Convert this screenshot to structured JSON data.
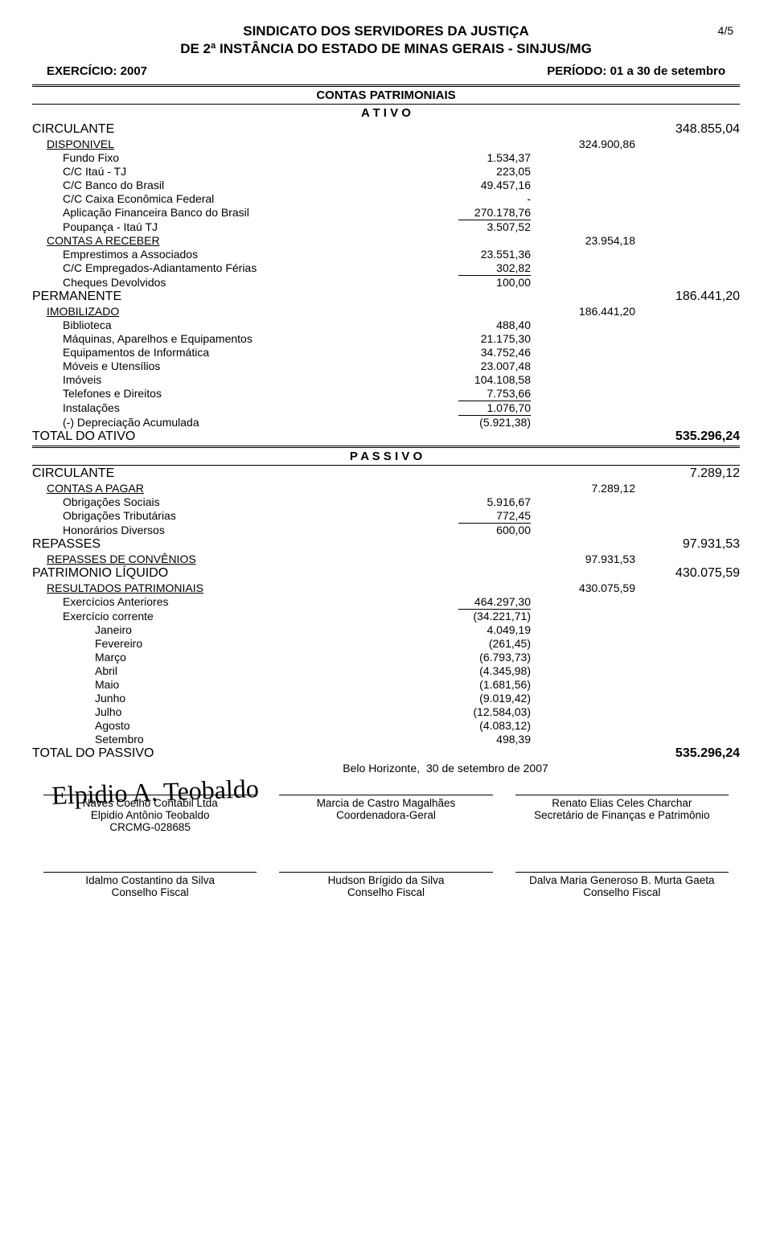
{
  "pageNumber": "4/5",
  "org": {
    "name1": "SINDICATO DOS SERVIDORES DA JUSTIÇA",
    "name2": "DE 2ª INSTÂNCIA DO ESTADO DE MINAS GERAIS - SINJUS/MG"
  },
  "header": {
    "left": "EXERCÍCIO: 2007",
    "right": "PERÍODO: 01 a   30 de setembro"
  },
  "sectionA": "CONTAS PATRIMONIAIS",
  "ativoTitle": "A T I V O",
  "passivoTitle": "P A S S I V O",
  "ativo": {
    "circulante": {
      "label": "CIRCULANTE",
      "total": "348.855,04"
    },
    "disponivel": {
      "label": "DISPONIVEL",
      "total": "324.900,86",
      "items": [
        {
          "label": "Fundo Fixo",
          "val": "1.534,37"
        },
        {
          "label": "C/C Itaú - TJ",
          "val": "223,05"
        },
        {
          "label": "C/C Banco do Brasil",
          "val": "49.457,16"
        },
        {
          "label": "C/C Caixa Econômica Federal",
          "val": "-"
        },
        {
          "label": "Aplicação Financeira Banco do Brasil",
          "val": "270.178,76"
        },
        {
          "label": "Poupança - Itaú TJ",
          "val": "3.507,52",
          "sum": true
        }
      ]
    },
    "contasReceber": {
      "label": "CONTAS A RECEBER",
      "total": "23.954,18",
      "items": [
        {
          "label": "Emprestimos a Associados",
          "val": "23.551,36"
        },
        {
          "label": "C/C Empregados-Adiantamento Férias",
          "val": "302,82"
        },
        {
          "label": "Cheques Devolvidos",
          "val": "100,00",
          "sum": true
        }
      ]
    },
    "permanente": {
      "label": "PERMANENTE",
      "total": "186.441,20"
    },
    "imobilizado": {
      "label": "IMOBILIZADO",
      "total": "186.441,20",
      "items": [
        {
          "label": "Biblioteca",
          "val": "488,40"
        },
        {
          "label": "Máquinas, Aparelhos e Equipamentos",
          "val": "21.175,30"
        },
        {
          "label": "Equipamentos de Informática",
          "val": "34.752,46"
        },
        {
          "label": "Móveis e Utensílios",
          "val": "23.007,48"
        },
        {
          "label": "Imóveis",
          "val": "104.108,58"
        },
        {
          "label": "Telefones e Direitos",
          "val": "7.753,66"
        },
        {
          "label": "Instalações",
          "val": "1.076,70",
          "sum": true
        }
      ]
    },
    "depreciacao": {
      "label": "(-) Depreciação Acumulada",
      "val": "(5.921,38)"
    },
    "totalAtivo": {
      "label": "TOTAL DO ATIVO",
      "total": "535.296,24"
    }
  },
  "passivo": {
    "circulante": {
      "label": "CIRCULANTE",
      "total": "7.289,12"
    },
    "contasPagar": {
      "label": "CONTAS A PAGAR",
      "total": "7.289,12",
      "items": [
        {
          "label": "Obrigações Sociais",
          "val": "5.916,67"
        },
        {
          "label": "Obrigações Tributárias",
          "val": "772,45"
        },
        {
          "label": "Honorários Diversos",
          "val": "600,00",
          "sum": true
        }
      ]
    },
    "repasses": {
      "label": "REPASSES",
      "total": "97.931,53"
    },
    "repassesConv": {
      "label": "REPASSES DE CONVÊNIOS",
      "total": "97.931,53"
    },
    "patrimonio": {
      "label": "PATRIMONIO LÍQUIDO",
      "total": "430.075,59"
    },
    "resultados": {
      "label": "RESULTADOS PATRIMONIAIS",
      "total": "430.075,59"
    },
    "exAnteriores": {
      "label": "Exercícios Anteriores",
      "val": "464.297,30"
    },
    "exCorrente": {
      "label": "Exercício corrente",
      "val": "(34.221,71)"
    },
    "meses": [
      {
        "label": "Janeiro",
        "val": "4.049,19"
      },
      {
        "label": "Fevereiro",
        "val": "(261,45)"
      },
      {
        "label": "Março",
        "val": "(6.793,73)"
      },
      {
        "label": "Abril",
        "val": "(4.345,98)"
      },
      {
        "label": "Maio",
        "val": "(1.681,56)"
      },
      {
        "label": "Junho",
        "val": "(9.019,42)"
      },
      {
        "label": "Julho",
        "val": "(12.584,03)"
      },
      {
        "label": "Agosto",
        "val": "(4.083,12)"
      },
      {
        "label": "Setembro",
        "val": "498,39"
      }
    ],
    "totalPassivo": {
      "label": "TOTAL DO PASSIVO",
      "total": "535.296,24"
    }
  },
  "placeDate": {
    "place": "Belo Horizonte,",
    "date": "30 de setembro de 2007"
  },
  "sigs1": [
    {
      "l1": "Naves Coelho Contábil Ltda",
      "l2": "Elpidio Antônio Teobaldo",
      "l3": "CRCMG-028685"
    },
    {
      "l1": "Marcia de Castro Magalhães",
      "l2": "Coordenadora-Geral",
      "l3": ""
    },
    {
      "l1": "Renato Elias Celes Charchar",
      "l2": "Secretário de Finanças e Patrimônio",
      "l3": ""
    }
  ],
  "sigs2": [
    {
      "l1": "Idalmo Costantino da Silva",
      "l2": "Conselho Fiscal"
    },
    {
      "l1": "Hudson Brígido da Silva",
      "l2": "Conselho Fiscal"
    },
    {
      "l1": "Dalva Maria Generoso B. Murta Gaeta",
      "l2": "Conselho Fiscal"
    }
  ]
}
